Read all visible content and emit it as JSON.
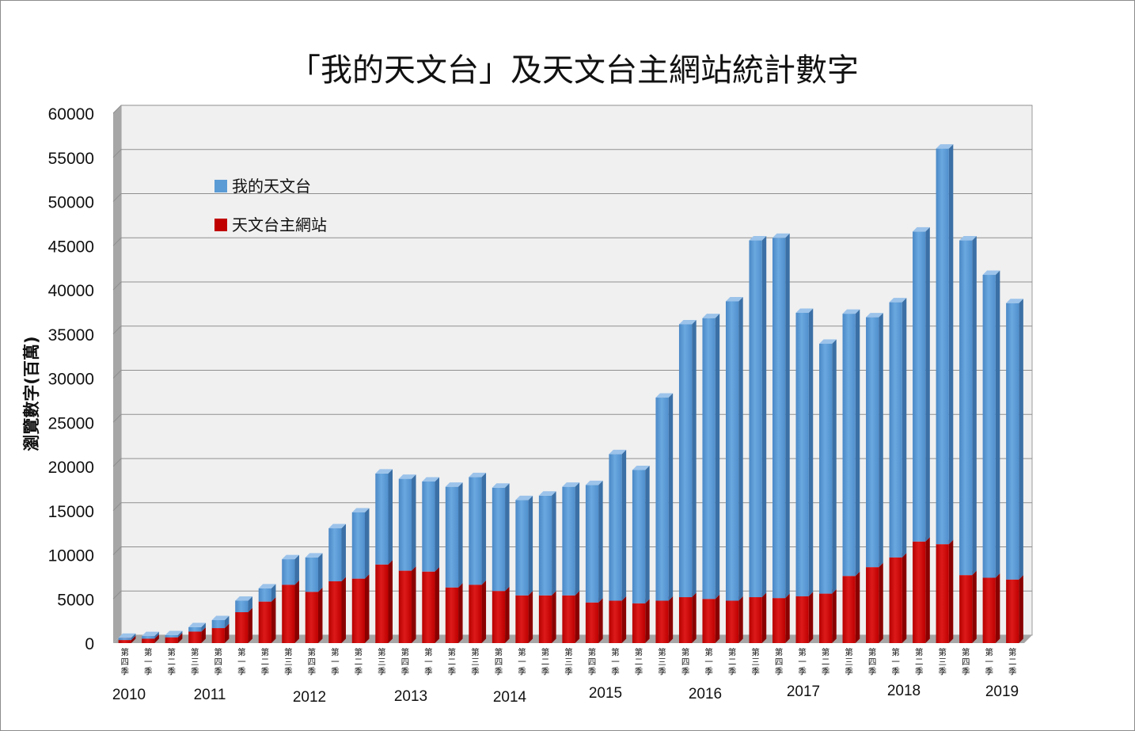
{
  "chart_data": {
    "type": "bar",
    "stacked": true,
    "title": "「我的天文台」及天文台主網站統計數字",
    "ylabel": "瀏覽數字(百萬)",
    "ylim": [
      0,
      60000
    ],
    "yticks": [
      0,
      5000,
      10000,
      15000,
      20000,
      25000,
      30000,
      35000,
      40000,
      45000,
      50000,
      55000,
      60000
    ],
    "grid": true,
    "legend_position": "top-left",
    "categories": [
      "第四季",
      "第一季",
      "第二季",
      "第三季",
      "第四季",
      "第一季",
      "第二季",
      "第三季",
      "第四季",
      "第一季",
      "第二季",
      "第三季",
      "第四季",
      "第一季",
      "第二季",
      "第三季",
      "第四季",
      "第一季",
      "第二季",
      "第三季",
      "第四季",
      "第一季",
      "第二季",
      "第三季",
      "第四季",
      "第一季",
      "第二季",
      "第三季",
      "第四季",
      "第一季",
      "第二季",
      "第三季",
      "第四季",
      "第一季",
      "第二季",
      "第三季",
      "第四季",
      "第一季",
      "第二季"
    ],
    "year_labels": [
      "2010",
      "2011",
      "2012",
      "2013",
      "2014",
      "2015",
      "2016",
      "2017",
      "2018",
      "2019"
    ],
    "series": [
      {
        "name": "天文台主網站",
        "color": "#c00000",
        "values": [
          350,
          500,
          650,
          1300,
          1700,
          3500,
          4700,
          6600,
          5800,
          7000,
          7300,
          8900,
          8200,
          8100,
          6300,
          6600,
          5900,
          5400,
          5400,
          5400,
          4600,
          4800,
          4500,
          4800,
          5200,
          5000,
          4800,
          5200,
          5100,
          5300,
          5600,
          7600,
          8600,
          9700,
          11500,
          11200,
          7700,
          7400,
          7200
        ]
      },
      {
        "name": "我的天文台",
        "color": "#5b9bd5",
        "values": [
          250,
          300,
          250,
          500,
          900,
          1300,
          1500,
          2900,
          3900,
          6000,
          7500,
          10300,
          10400,
          10200,
          11400,
          12200,
          11700,
          10800,
          11300,
          12300,
          13300,
          16600,
          15100,
          23000,
          30900,
          31800,
          33900,
          40400,
          40800,
          32100,
          28300,
          29700,
          28300,
          28900,
          35100,
          44800,
          37900,
          34300,
          31300
        ]
      }
    ]
  }
}
